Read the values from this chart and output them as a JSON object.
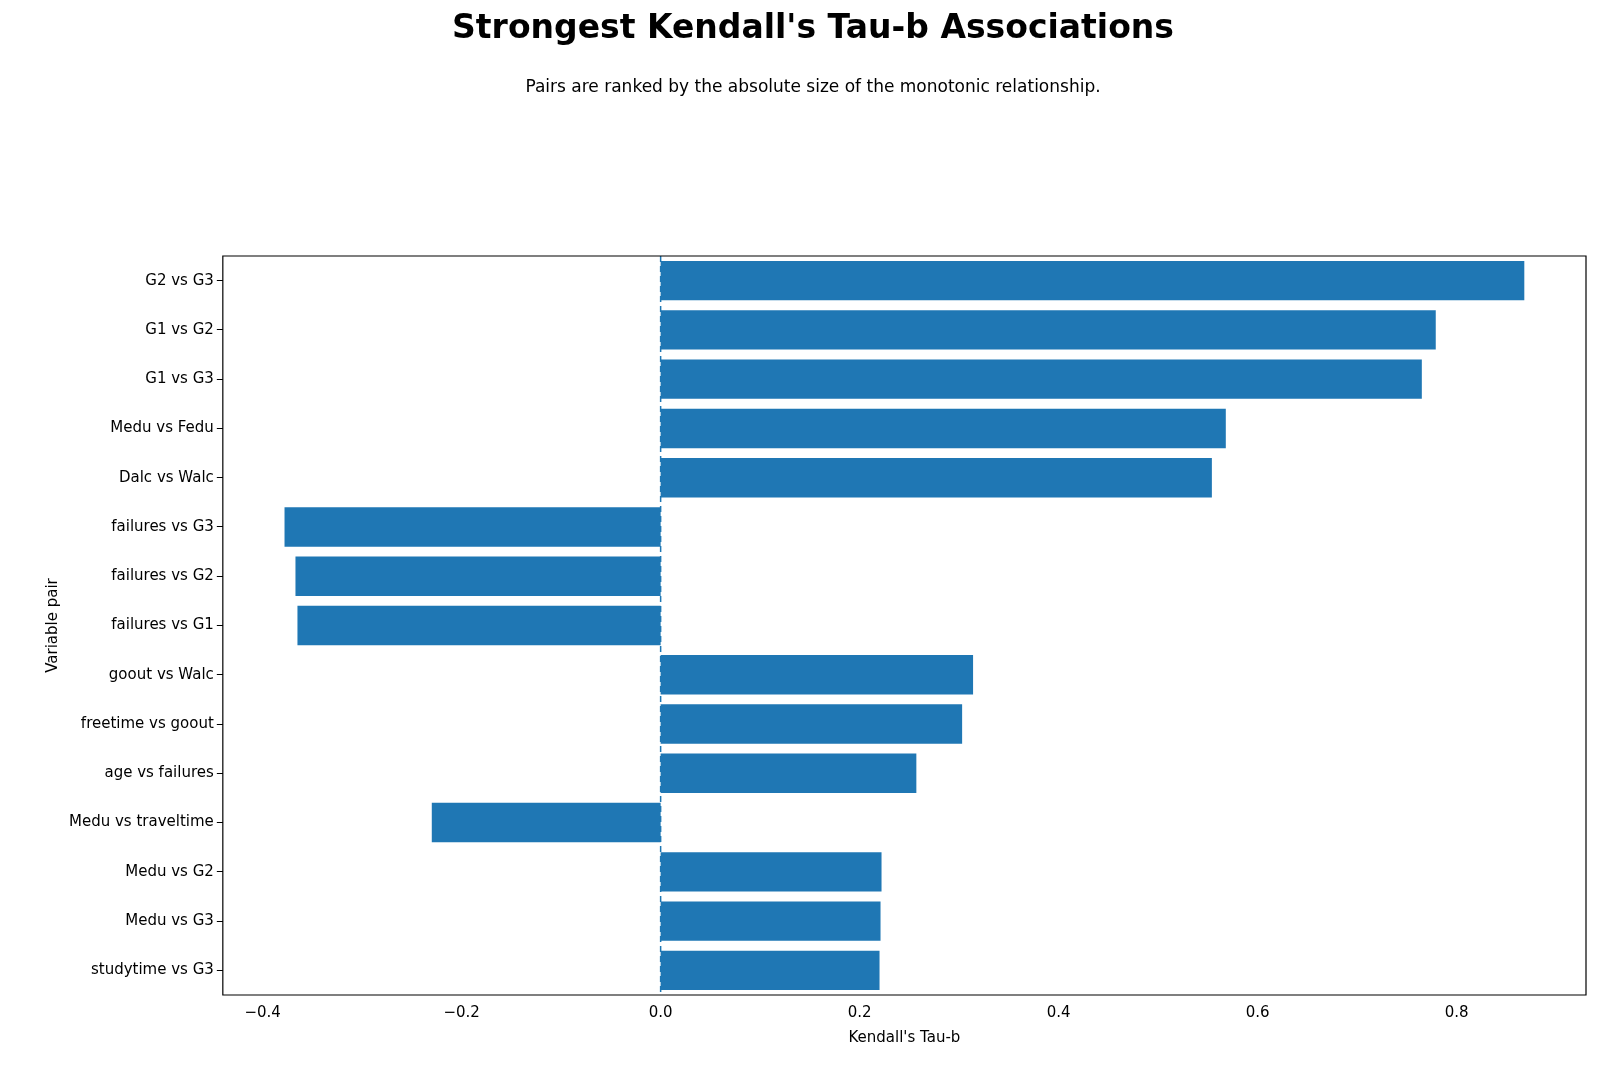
{
  "chart_data": {
    "type": "bar",
    "orientation": "horizontal",
    "title": "Strongest Kendall's Tau-b Associations",
    "subtitle": "Pairs are ranked by the absolute size of the monotonic relationship.",
    "xlabel": "Kendall's Tau-b",
    "ylabel": "Variable pair",
    "categories": [
      "G2 vs G3",
      "G1 vs G2",
      "G1 vs G3",
      "Medu vs Fedu",
      "Dalc vs Walc",
      "failures vs G3",
      "failures vs G2",
      "failures vs G1",
      "goout vs Walc",
      "freetime vs goout",
      "age vs failures",
      "Medu vs traveltime",
      "Medu vs G2",
      "Medu vs G3",
      "studytime vs G3"
    ],
    "values": [
      0.868,
      0.779,
      0.765,
      0.568,
      0.554,
      -0.378,
      -0.367,
      -0.365,
      0.314,
      0.303,
      0.257,
      -0.23,
      0.222,
      0.221,
      0.22
    ],
    "color": "#1f77b4",
    "xlim": [
      -0.44,
      0.93
    ],
    "xticks": [
      {
        "value": -0.4,
        "label": "−0.4"
      },
      {
        "value": -0.2,
        "label": "−0.2"
      },
      {
        "value": 0,
        "label": "0.0"
      },
      {
        "value": 0.2,
        "label": "0.2"
      },
      {
        "value": 0.4,
        "label": "0.4"
      },
      {
        "value": 0.6,
        "label": "0.6"
      },
      {
        "value": 0.8,
        "label": "0.8"
      }
    ],
    "ref_lines": [
      {
        "axis": "x",
        "value": 0,
        "color": "#1f77b4",
        "line_style": "dashed"
      }
    ],
    "grid": false,
    "legend": false
  }
}
